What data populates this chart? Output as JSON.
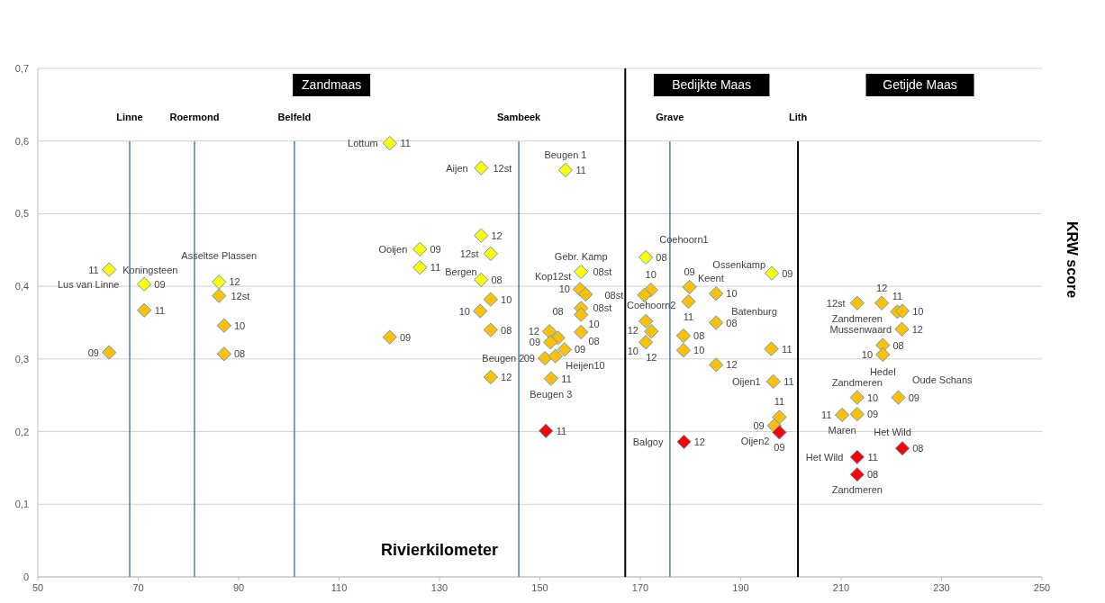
{
  "chart_data": {
    "type": "scatter",
    "xlabel": "Rivierkilometer",
    "ylabel": "KRW score",
    "xlim": [
      50,
      250
    ],
    "ylim": [
      0,
      0.7
    ],
    "xticks": [
      50,
      70,
      90,
      110,
      130,
      150,
      170,
      190,
      210,
      230,
      250
    ],
    "yticks": [
      0,
      {
        "value": 0.1,
        "label": "0,1"
      },
      {
        "value": 0.2,
        "label": "0,2"
      },
      {
        "value": 0.3,
        "label": "0,3"
      },
      {
        "value": 0.4,
        "label": "0,4"
      },
      {
        "value": 0.5,
        "label": "0,5"
      },
      {
        "value": 0.6,
        "label": "0,6"
      },
      {
        "value": 0.7,
        "label": "0,7"
      }
    ],
    "grid": "y",
    "marker": "diamond",
    "series": [
      {
        "color": "#ffff00",
        "x": [
          64.2,
          71.2,
          86.1,
          120.1,
          138.3,
          155.1,
          126.1,
          126.1,
          138.3,
          140.2,
          138.3,
          158.2,
          171.1,
          196.2
        ],
        "values": [
          0.423,
          0.403,
          0.406,
          0.597,
          0.563,
          0.56,
          0.451,
          0.426,
          0.47,
          0.445,
          0.409,
          0.42,
          0.44,
          0.418
        ]
      },
      {
        "color": "#ffc000",
        "x": [
          64.2,
          71.2,
          86.1,
          87.1,
          87.1,
          120.1,
          140.2,
          138.1,
          140.2,
          140.2,
          151.9,
          153.6,
          152.1,
          154.9,
          151.0,
          153.1,
          152.2,
          158.0,
          159.1,
          158.2,
          158.2,
          158.2,
          172.1,
          170.8,
          171.1,
          172.2,
          171.1,
          179.8,
          179.6,
          178.6,
          178.6,
          185.1,
          185.1,
          185.1,
          196.1,
          196.5,
          197.7,
          196.7,
          213.2,
          218.1,
          221.2,
          222.2,
          222.1,
          218.3,
          218.3,
          213.2,
          221.4,
          210.2,
          213.2
        ],
        "values": [
          0.309,
          0.367,
          0.387,
          0.346,
          0.307,
          0.33,
          0.382,
          0.366,
          0.34,
          0.275,
          0.338,
          0.329,
          0.323,
          0.313,
          0.301,
          0.304,
          0.273,
          0.396,
          0.389,
          0.37,
          0.361,
          0.337,
          0.395,
          0.388,
          0.352,
          0.338,
          0.323,
          0.399,
          0.379,
          0.332,
          0.312,
          0.39,
          0.35,
          0.292,
          0.314,
          0.269,
          0.22,
          0.208,
          0.377,
          0.377,
          0.365,
          0.366,
          0.341,
          0.319,
          0.306,
          0.247,
          0.247,
          0.223,
          0.224
        ]
      },
      {
        "color": "#ff0000",
        "x": [
          151.2,
          178.7,
          197.7,
          213.2,
          213.2,
          222.2
        ],
        "values": [
          0.201,
          0.186,
          0.199,
          0.165,
          0.141,
          0.177
        ]
      }
    ],
    "ref_lines": [
      {
        "axis": "x",
        "value": 68.3,
        "label": "Linne",
        "color": "#4a7ebb"
      },
      {
        "axis": "x",
        "value": 81.2,
        "label": "Roermond",
        "color": "#4a7ebb"
      },
      {
        "axis": "x",
        "value": 101.1,
        "label": "Belfeld",
        "color": "#4a7ebb"
      },
      {
        "axis": "x",
        "value": 145.8,
        "label": "Sambeek",
        "color": "#4a7ebb"
      },
      {
        "axis": "x",
        "value": 167.0,
        "color": "#000000"
      },
      {
        "axis": "x",
        "value": 175.9,
        "label": "Grave",
        "color": "#4a7ebb"
      },
      {
        "axis": "x",
        "value": 201.4,
        "label": "Lith",
        "color": "#000000"
      }
    ],
    "annotations": [
      "Zandmaas",
      "Bedijkte Maas",
      "Getijde Maas",
      {
        "text": "11",
        "x": 64.2,
        "y": 0.423
      },
      {
        "text": "09",
        "x": 71.2,
        "y": 0.403
      },
      {
        "text": "12",
        "x": 86.1,
        "y": 0.406
      },
      {
        "text": "11",
        "x": 120.1,
        "y": 0.597
      },
      {
        "text": "12st",
        "x": 138.3,
        "y": 0.563
      },
      {
        "text": "11",
        "x": 155.1,
        "y": 0.56
      },
      {
        "text": "09",
        "x": 126.1,
        "y": 0.451
      },
      {
        "text": "11",
        "x": 126.1,
        "y": 0.426
      },
      {
        "text": "12",
        "x": 138.3,
        "y": 0.47
      },
      {
        "text": "12st",
        "x": 140.2,
        "y": 0.445
      },
      {
        "text": "08",
        "x": 138.3,
        "y": 0.409
      },
      {
        "text": "08st",
        "x": 158.2,
        "y": 0.42
      },
      {
        "text": "08",
        "x": 171.1,
        "y": 0.44
      },
      {
        "text": "09",
        "x": 196.2,
        "y": 0.418
      },
      {
        "text": "09",
        "x": 64.2,
        "y": 0.309
      },
      {
        "text": "11",
        "x": 71.2,
        "y": 0.367
      },
      {
        "text": "12st",
        "x": 86.1,
        "y": 0.387
      },
      {
        "text": "10",
        "x": 87.1,
        "y": 0.346
      },
      {
        "text": "08",
        "x": 87.1,
        "y": 0.307
      },
      {
        "text": "09",
        "x": 120.1,
        "y": 0.33
      },
      {
        "text": "10",
        "x": 140.2,
        "y": 0.382
      },
      {
        "text": "10",
        "x": 138.1,
        "y": 0.366
      },
      {
        "text": "08",
        "x": 140.2,
        "y": 0.34
      },
      {
        "text": "12",
        "x": 140.2,
        "y": 0.275
      },
      {
        "text": "12",
        "x": 151.9,
        "y": 0.338
      },
      {
        "text": "08",
        "x": 153.6,
        "y": 0.329
      },
      {
        "text": "09",
        "x": 152.1,
        "y": 0.323
      },
      {
        "text": "09",
        "x": 154.9,
        "y": 0.313
      },
      {
        "text": "09",
        "x": 151.0,
        "y": 0.301
      },
      {
        "text": "Heijen10",
        "x": 153.1,
        "y": 0.304
      },
      {
        "text": "11",
        "x": 152.2,
        "y": 0.273
      },
      {
        "text": "10",
        "x": 158.0,
        "y": 0.396
      },
      {
        "text": "Kop12st",
        "x": 159.1,
        "y": 0.389
      },
      {
        "text": "08st",
        "x": 158.2,
        "y": 0.37
      },
      {
        "text": "10",
        "x": 158.2,
        "y": 0.361
      },
      {
        "text": "08",
        "x": 158.2,
        "y": 0.337
      },
      {
        "text": "10",
        "x": 172.1,
        "y": 0.395
      },
      {
        "text": "08st",
        "x": 170.8,
        "y": 0.388
      },
      {
        "text": "12",
        "x": 171.1,
        "y": 0.352
      },
      {
        "text": "12",
        "x": 172.2,
        "y": 0.338
      },
      {
        "text": "10",
        "x": 171.1,
        "y": 0.323
      },
      {
        "text": "09",
        "x": 179.8,
        "y": 0.399
      },
      {
        "text": "11",
        "x": 179.6,
        "y": 0.379
      },
      {
        "text": "08",
        "x": 178.6,
        "y": 0.332
      },
      {
        "text": "10",
        "x": 178.6,
        "y": 0.312
      },
      {
        "text": "10",
        "x": 185.1,
        "y": 0.39
      },
      {
        "text": "08",
        "x": 185.1,
        "y": 0.35
      },
      {
        "text": "12",
        "x": 185.1,
        "y": 0.292
      },
      {
        "text": "11",
        "x": 196.1,
        "y": 0.314
      },
      {
        "text": "11",
        "x": 196.5,
        "y": 0.269
      },
      {
        "text": "11",
        "x": 197.7,
        "y": 0.22
      },
      {
        "text": "09",
        "x": 196.7,
        "y": 0.208
      },
      {
        "text": "12st",
        "x": 213.2,
        "y": 0.377
      },
      {
        "text": "12",
        "x": 218.1,
        "y": 0.377
      },
      {
        "text": "11",
        "x": 221.2,
        "y": 0.365
      },
      {
        "text": "10",
        "x": 222.2,
        "y": 0.366
      },
      {
        "text": "12",
        "x": 222.1,
        "y": 0.341
      },
      {
        "text": "08",
        "x": 218.3,
        "y": 0.319
      },
      {
        "text": "10",
        "x": 218.3,
        "y": 0.306
      },
      {
        "text": "10",
        "x": 213.2,
        "y": 0.247
      },
      {
        "text": "09",
        "x": 221.4,
        "y": 0.247
      },
      {
        "text": "11",
        "x": 210.2,
        "y": 0.223
      },
      {
        "text": "09",
        "x": 213.2,
        "y": 0.224
      },
      {
        "text": "11",
        "x": 151.2,
        "y": 0.201
      },
      {
        "text": "12",
        "x": 178.7,
        "y": 0.186
      },
      {
        "text": "09",
        "x": 197.7,
        "y": 0.199
      },
      {
        "text": "11",
        "x": 213.2,
        "y": 0.165
      },
      {
        "text": "08",
        "x": 213.2,
        "y": 0.141
      },
      {
        "text": "08",
        "x": 222.2,
        "y": 0.177
      },
      {
        "text": "Koningsteen",
        "x": 64.2,
        "y": 0.423
      },
      {
        "text": "Lus van Linne",
        "x": 71.2,
        "y": 0.403
      },
      {
        "text": "Asseltse Plassen",
        "x": 86.1,
        "y": 0.406
      },
      {
        "text": "Lottum",
        "x": 120.1,
        "y": 0.597
      },
      {
        "text": "Aijen",
        "x": 138.3,
        "y": 0.563
      },
      {
        "text": "Beugen 1",
        "x": 155.1,
        "y": 0.56
      },
      {
        "text": "Ooijen",
        "x": 126.1,
        "y": 0.451
      },
      {
        "text": "Bergen",
        "x": 140.2,
        "y": 0.445
      },
      {
        "text": "Gebr. Kamp",
        "x": 158.2,
        "y": 0.42
      },
      {
        "text": "Coehoorn2",
        "x": 172.2,
        "y": 0.338
      },
      {
        "text": "Beugen 2",
        "x": 151.0,
        "y": 0.301
      },
      {
        "text": "Beugen 3",
        "x": 152.2,
        "y": 0.273
      },
      {
        "text": "Coehoorn1",
        "x": 171.1,
        "y": 0.44
      },
      {
        "text": "Keent",
        "x": 179.8,
        "y": 0.399
      },
      {
        "text": "Batenburg",
        "x": 185.1,
        "y": 0.39
      },
      {
        "text": "Balgoy",
        "x": 178.7,
        "y": 0.186
      },
      {
        "text": "Ossenkamp",
        "x": 196.2,
        "y": 0.418
      },
      {
        "text": "Oijen1",
        "x": 196.5,
        "y": 0.269
      },
      {
        "text": "Oijen2",
        "x": 197.7,
        "y": 0.199
      },
      {
        "text": "Zandmeren",
        "x": 213.2,
        "y": 0.377
      },
      {
        "text": "Mussenwaard",
        "x": 222.1,
        "y": 0.341
      },
      {
        "text": "Hedel",
        "x": 218.3,
        "y": 0.319
      },
      {
        "text": "Zandmeren",
        "x": 213.2,
        "y": 0.247
      },
      {
        "text": "Oude Schans",
        "x": 221.4,
        "y": 0.247
      },
      {
        "text": "Maren",
        "x": 210.2,
        "y": 0.223
      },
      {
        "text": "Het Wild",
        "x": 213.2,
        "y": 0.224
      },
      {
        "text": "Het Wild",
        "x": 213.2,
        "y": 0.165
      },
      {
        "text": "Zandmeren",
        "x": 213.2,
        "y": 0.141
      }
    ]
  }
}
